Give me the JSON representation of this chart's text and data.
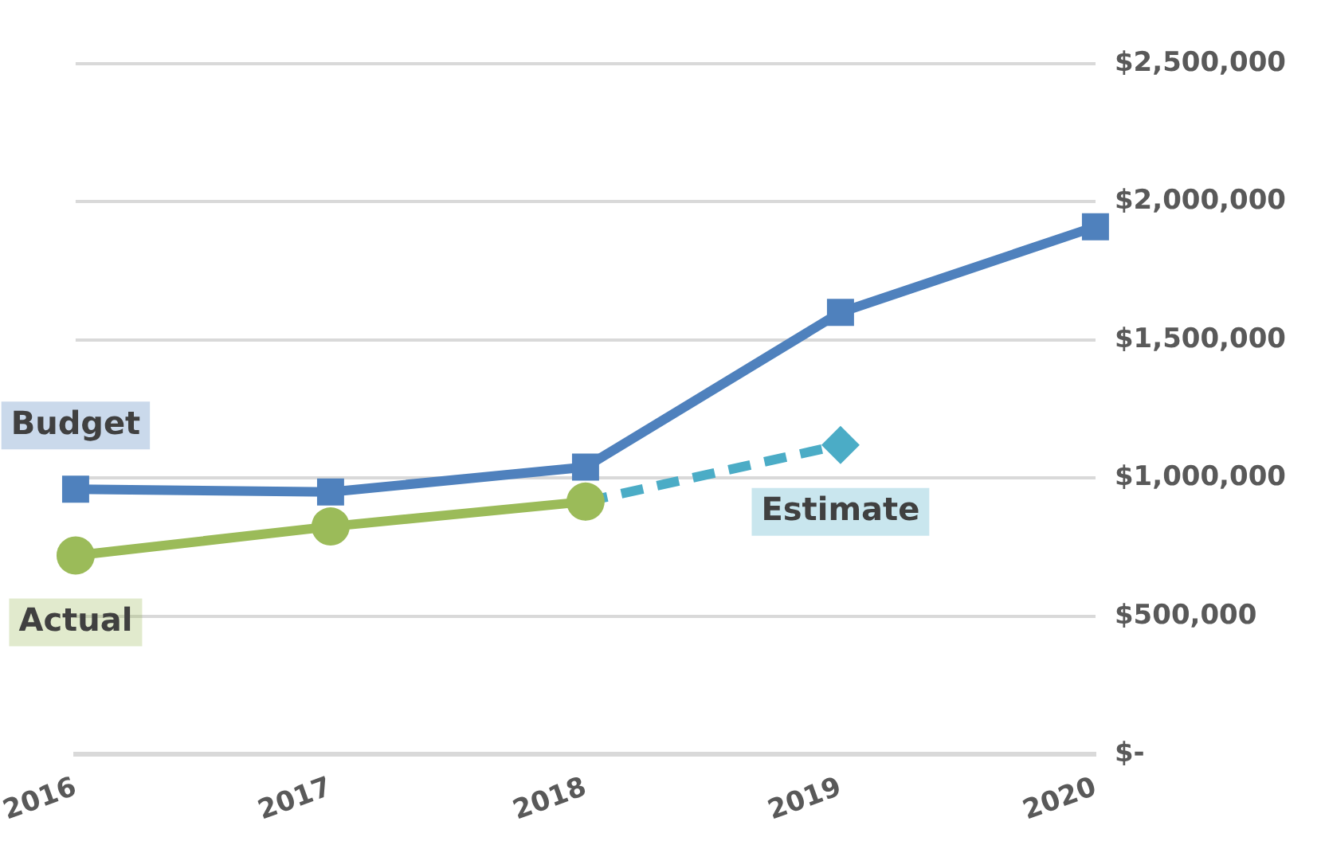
{
  "chart_data": {
    "type": "line",
    "categories": [
      "2016",
      "2017",
      "2018",
      "2019",
      "2020"
    ],
    "series": [
      {
        "name": "Budget",
        "color": "#4f81bd",
        "marker": "square",
        "line_style": "solid",
        "values": [
          960000,
          950000,
          1040000,
          1600000,
          1910000
        ]
      },
      {
        "name": "Actual",
        "color": "#9bbb59",
        "marker": "circle",
        "line_style": "solid",
        "values": [
          720000,
          825000,
          915000,
          null,
          null
        ]
      },
      {
        "name": "Estimate",
        "color": "#4bacc6",
        "marker": "diamond",
        "line_style": "dashed",
        "values": [
          null,
          null,
          915000,
          1120000,
          null
        ]
      }
    ],
    "ylim": [
      0,
      2500000
    ],
    "yticks": [
      {
        "value": 0,
        "label": "$-"
      },
      {
        "value": 500000,
        "label": "$500,000"
      },
      {
        "value": 1000000,
        "label": "$1,000,000"
      },
      {
        "value": 1500000,
        "label": "$1,500,000"
      },
      {
        "value": 2000000,
        "label": "$2,000,000"
      },
      {
        "value": 2500000,
        "label": "$2,500,000"
      }
    ],
    "grid": "y",
    "legend": false
  }
}
